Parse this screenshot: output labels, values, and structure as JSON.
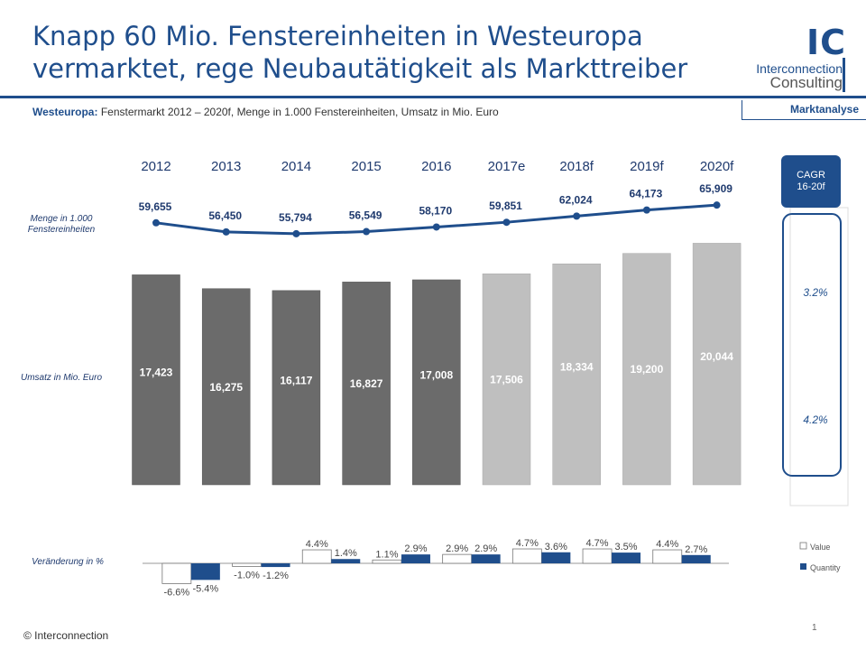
{
  "header": {
    "title": "Knapp 60 Mio. Fenstereinheiten in Westeuropa vermarktet, rege Neubautätigkeit als Markttreiber",
    "subtitle_bold": "Westeuropa:",
    "subtitle_rest": "Fenstermarkt 2012 – 2020f, Menge in 1.000 Fenstereinheiten, Umsatz in Mio. Euro",
    "section": "Marktanalyse"
  },
  "logo": {
    "mark": "IC",
    "line1": "Interconnection",
    "line2": "Consulting"
  },
  "footer": {
    "copyright": "© Interconnection",
    "page": "1"
  },
  "colors": {
    "brand": "#1f4e8c",
    "actual_bar": "#6b6b6b",
    "forecast_bar": "#bfbfbf"
  },
  "chart_data": {
    "type": "bar",
    "categories": [
      "2012",
      "2013",
      "2014",
      "2015",
      "2016",
      "2017e",
      "2018f",
      "2019f",
      "2020f"
    ],
    "row_labels": {
      "quantity": "Menge in 1.000 Fenstereinheiten",
      "revenue": "Umsatz in Mio. Euro",
      "change": "Veränderung in %"
    },
    "quantity": {
      "type": "line",
      "values": [
        59655,
        56450,
        55794,
        56549,
        58170,
        59851,
        62024,
        64173,
        65909
      ],
      "labels": [
        "59,655",
        "56,450",
        "55,794",
        "56,549",
        "58,170",
        "59,851",
        "62,024",
        "64,173",
        "65,909"
      ]
    },
    "revenue": {
      "type": "bar",
      "values": [
        17423,
        16275,
        16117,
        16827,
        17008,
        17506,
        18334,
        19200,
        20044
      ],
      "labels": [
        "17,423",
        "16,275",
        "16,117",
        "16,827",
        "17,008",
        "17,506",
        "18,334",
        "19,200",
        "20,044"
      ],
      "forecast_from_index": 5
    },
    "change": {
      "type": "bar",
      "series": [
        {
          "name": "Value",
          "values": [
            -6.6,
            -1.0,
            4.4,
            1.1,
            2.9,
            4.7,
            4.7,
            4.4
          ],
          "labels": [
            "-6.6%",
            "-1.0%",
            "4.4%",
            "1.1%",
            "2.9%",
            "4.7%",
            "4.7%",
            "4.4%"
          ]
        },
        {
          "name": "Quantity",
          "values": [
            -5.4,
            -1.2,
            1.4,
            2.9,
            2.9,
            3.6,
            3.5,
            2.7
          ],
          "labels": [
            "-5.4%",
            "-1.2%",
            "1.4%",
            "2.9%",
            "2.9%",
            "3.6%",
            "3.5%",
            "2.7%"
          ]
        }
      ],
      "legend_position": "right"
    },
    "cagr": {
      "header": "CAGR 16-20f",
      "quantity": "3.2%",
      "revenue": "4.2%"
    }
  }
}
